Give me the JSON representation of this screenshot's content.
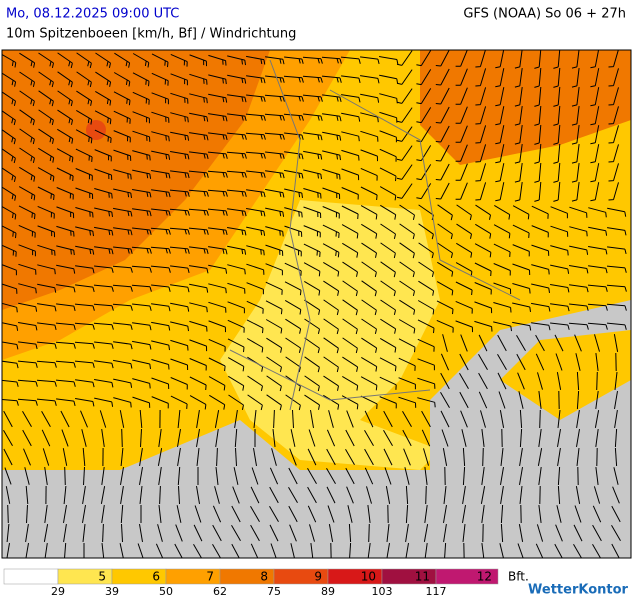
{
  "header": {
    "left": "Mo, 08.12.2025 09:00 UTC",
    "right": "GFS (NOAA) So 06 + 27h",
    "subtitle": "10m Spitzenboeen [km/h, Bf] / Windrichtung"
  },
  "legend": {
    "colors": [
      "#ffffff",
      "#ffe650",
      "#ffc800",
      "#ffa000",
      "#f07800",
      "#e84a10",
      "#d81818",
      "#a01040",
      "#c01870"
    ],
    "bft": [
      "5",
      "6",
      "7",
      "8",
      "9",
      "10",
      "11",
      "12"
    ],
    "kmh": [
      29,
      39,
      50,
      62,
      75,
      89,
      103,
      117
    ],
    "unit": "Bft."
  },
  "brand": "WetterKontor"
}
